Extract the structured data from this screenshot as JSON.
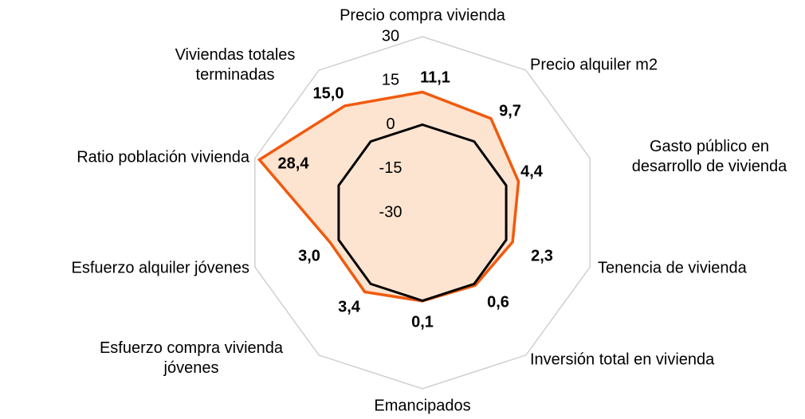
{
  "chart_data": {
    "type": "radar",
    "categories": [
      "Precio compra vivienda",
      "Precio alquiler m2",
      "Gasto público en\ndesarrollo de vivienda",
      "Tenencia de vivienda",
      "Inversión total en vivienda",
      "Emancipados",
      "Esfuerzo compra  vivienda\njóvenes",
      "Esfuerzo alquiler jóvenes",
      "Ratio población vivienda",
      "Viviendas totales\nterminadas"
    ],
    "values": [
      11.1,
      9.7,
      4.4,
      2.3,
      0.6,
      0.1,
      3.4,
      3.0,
      28.4,
      15.0
    ],
    "value_labels": [
      "11,1",
      "9,7",
      "4,4",
      "2,3",
      "0,6",
      "0,1",
      "3,4",
      "3,0",
      "28,4",
      "15,0"
    ],
    "color": "#f05a0e",
    "fill": "#fde4d0",
    "ylim": [
      -30,
      30
    ],
    "yticks": [
      -30,
      -15,
      0,
      15,
      30
    ],
    "reference_value": 0
  }
}
